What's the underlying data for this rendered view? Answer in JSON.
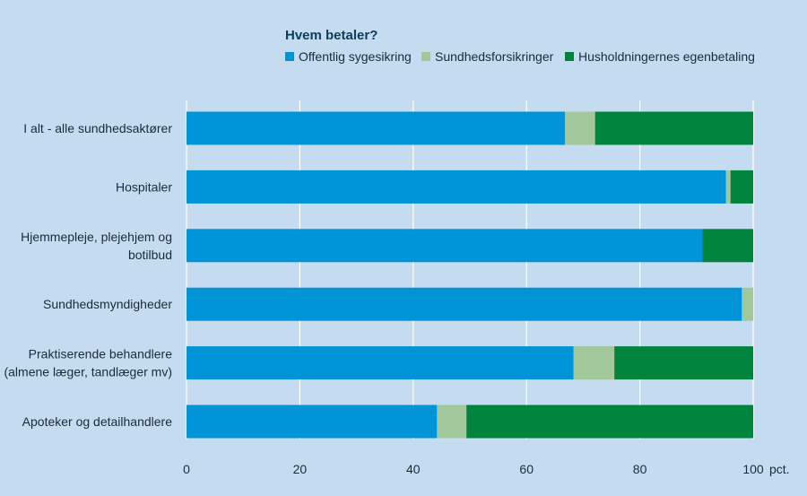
{
  "chart_data": {
    "type": "bar",
    "orientation": "horizontal",
    "stacked": true,
    "legend_title": "Hvem betaler?",
    "legend_placement": "top-center",
    "categories": [
      "I alt - alle sundhedsaktører",
      "Hospitaler",
      "Hjemmepleje, plejehjem og botilbud",
      "Sundhedsmyndigheder",
      "Praktiserende behandlere (almene læger, tandlæger mv)",
      "Apoteker og detailhandlere"
    ],
    "category_lines": [
      [
        "I alt - alle sundhedsaktører"
      ],
      [
        "Hospitaler"
      ],
      [
        "Hjemmepleje, plejehjem og",
        "botilbud"
      ],
      [
        "Sundhedsmyndigheder"
      ],
      [
        "Praktiserende behandlere",
        "(almene læger, tandlæger mv)"
      ],
      [
        "Apoteker og detailhandlere"
      ]
    ],
    "series": [
      {
        "name": "Offentlig sygesikring",
        "color": "#0093d6",
        "values": [
          66.8,
          95.2,
          91.0,
          98.0,
          68.3,
          44.2
        ]
      },
      {
        "name": "Sundhedsforsikringer",
        "color": "#a2c79b",
        "values": [
          5.3,
          0.8,
          0.0,
          2.0,
          7.2,
          5.2
        ]
      },
      {
        "name": "Husholdningernes egenbetaling",
        "color": "#00843d",
        "values": [
          27.9,
          4.0,
          9.0,
          0.0,
          24.5,
          50.6
        ]
      }
    ],
    "xlim": [
      0,
      100
    ],
    "xticks": [
      0,
      20,
      40,
      60,
      80,
      100
    ],
    "x_unit": "pct.",
    "grid": "vertical"
  }
}
